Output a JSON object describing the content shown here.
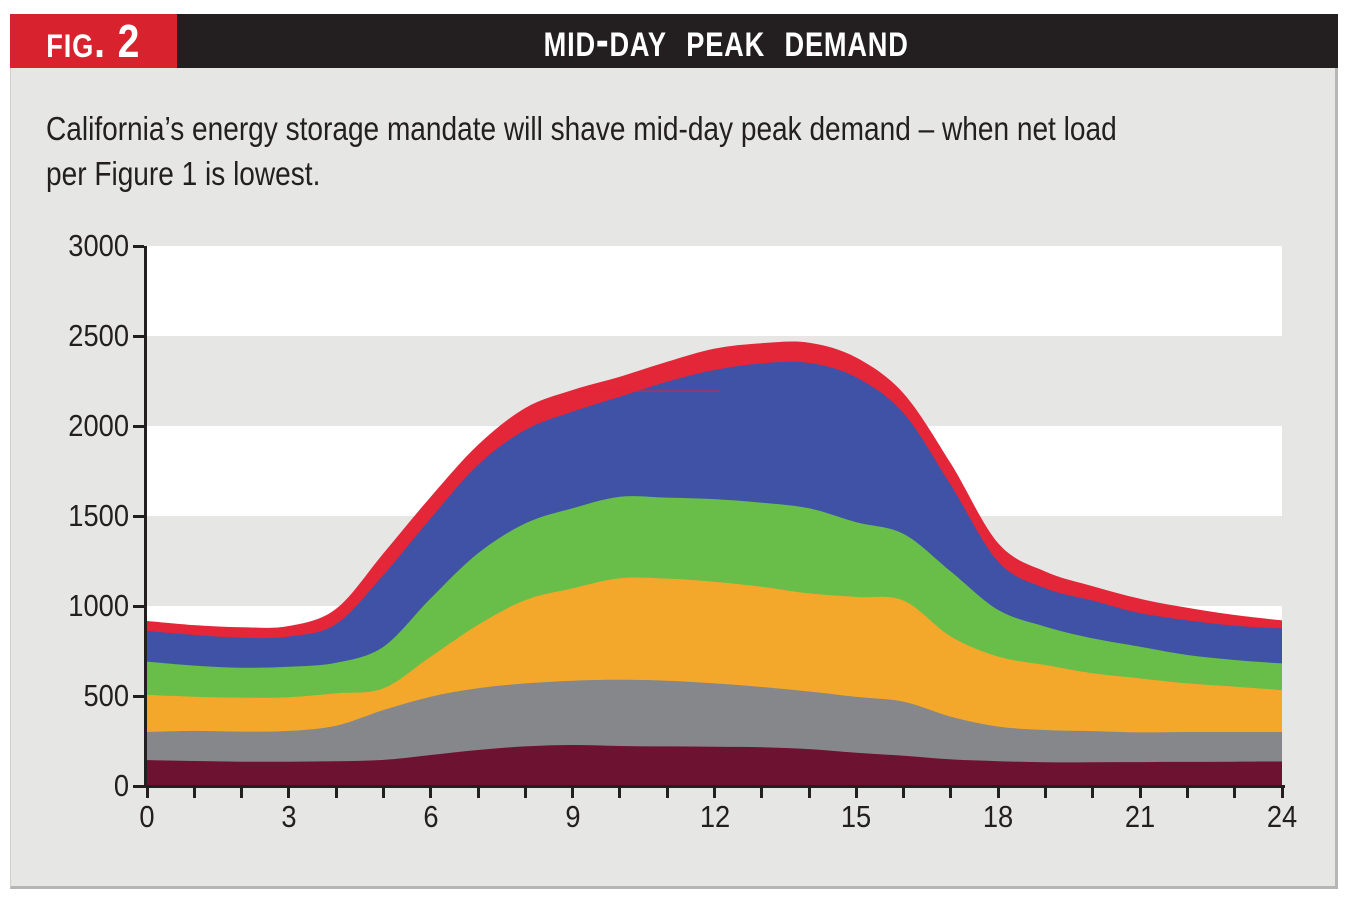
{
  "figure": {
    "tag": "Fig. 2",
    "title": "Mid-Day Peak Demand"
  },
  "caption": {
    "line1": "California’s energy storage mandate will shave mid-day peak demand – when net load",
    "line2": "per Figure 1 is lowest."
  },
  "colors": {
    "header_black": "#231f20",
    "fig_tag_red": "#d8232f",
    "panel_bg": "#e6e6e4",
    "plot_band_white": "#ffffff",
    "plot_band_gray": "#e6e6e4",
    "axis": "#231f20",
    "label_text": "#231f20"
  },
  "chart_data": {
    "type": "area",
    "stacked": true,
    "title": "Mid-Day Peak Demand",
    "xlabel": "",
    "ylabel": "",
    "xlim": [
      0,
      24
    ],
    "ylim": [
      0,
      3000
    ],
    "xticks": [
      0,
      3,
      6,
      9,
      12,
      15,
      18,
      21,
      24
    ],
    "yticks": [
      0,
      500,
      1000,
      1500,
      2000,
      2500,
      3000
    ],
    "grid": "horizontal-bands",
    "legend": "none",
    "hours": [
      0,
      1,
      2,
      3,
      4,
      5,
      6,
      7,
      8,
      9,
      10,
      11,
      12,
      13,
      14,
      15,
      16,
      17,
      18,
      19,
      20,
      21,
      22,
      23,
      24
    ],
    "series": [
      {
        "name": "maroon",
        "color": "#6d1230",
        "values": [
          144,
          139,
          135,
          135,
          137,
          145,
          172,
          200,
          220,
          228,
          222,
          220,
          218,
          215,
          205,
          185,
          168,
          148,
          138,
          132,
          132,
          133,
          134,
          135,
          136
        ]
      },
      {
        "name": "gray",
        "color": "#85878a",
        "values": [
          156,
          167,
          167,
          171,
          198,
          277,
          324,
          343,
          350,
          357,
          368,
          365,
          352,
          335,
          320,
          310,
          300,
          237,
          192,
          179,
          173,
          165,
          166,
          165,
          164
        ]
      },
      {
        "name": "orange",
        "color": "#f3a72b",
        "values": [
          206,
          190,
          189,
          187,
          180,
          121,
          223,
          352,
          463,
          513,
          564,
          567,
          565,
          557,
          545,
          555,
          562,
          445,
          389,
          361,
          321,
          300,
          270,
          252,
          233
        ]
      },
      {
        "name": "green",
        "color": "#68be48",
        "values": [
          185,
          173,
          166,
          170,
          170,
          231,
          324,
          398,
          426,
          445,
          453,
          450,
          459,
          467,
          473,
          415,
          370,
          361,
          259,
          213,
          194,
          176,
          158,
          148,
          148
        ]
      },
      {
        "name": "blue",
        "color": "#3f52a5",
        "values": [
          170,
          170,
          167,
          167,
          215,
          398,
          444,
          491,
          519,
          537,
          556,
          644,
          717,
          774,
          807,
          805,
          670,
          479,
          268,
          213,
          210,
          186,
          192,
          190,
          194
        ]
      },
      {
        "name": "red",
        "color": "#e32638",
        "values": [
          56,
          55,
          58,
          59,
          85,
          121,
          120,
          111,
          122,
          120,
          111,
          111,
          119,
          112,
          113,
          110,
          110,
          120,
          102,
          93,
          80,
          80,
          70,
          60,
          45
        ]
      }
    ],
    "plot_bands": [
      {
        "from": 0,
        "to": 500,
        "color": "#e6e6e4"
      },
      {
        "from": 500,
        "to": 1000,
        "color": "#ffffff"
      },
      {
        "from": 1000,
        "to": 1500,
        "color": "#e6e6e4"
      },
      {
        "from": 1500,
        "to": 2000,
        "color": "#ffffff"
      },
      {
        "from": 2000,
        "to": 2500,
        "color": "#e6e6e4"
      },
      {
        "from": 2500,
        "to": 3000,
        "color": "#ffffff"
      }
    ],
    "artifact_line": {
      "x_from": 9.0,
      "x_to": 12.1,
      "y": 2200,
      "color": "rgba(227,38,56,0.45)"
    }
  }
}
